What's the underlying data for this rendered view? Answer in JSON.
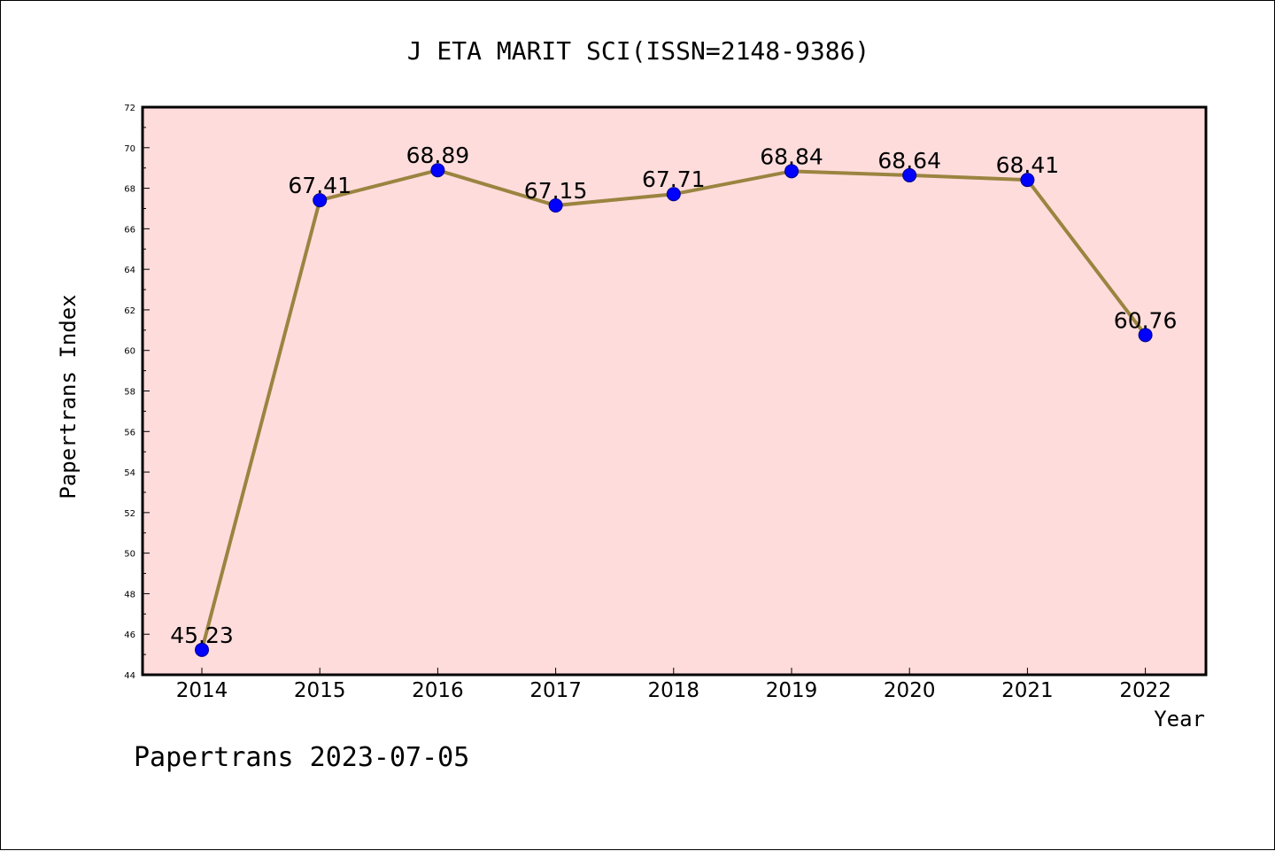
{
  "chart_data": {
    "type": "line",
    "title": "J ETA MARIT SCI(ISSN=2148-9386)",
    "xlabel": "Year",
    "ylabel": "Papertrans Index",
    "categories": [
      "2014",
      "2015",
      "2016",
      "2017",
      "2018",
      "2019",
      "2020",
      "2021",
      "2022"
    ],
    "values": [
      45.23,
      67.41,
      68.89,
      67.15,
      67.71,
      68.84,
      68.64,
      68.41,
      60.76
    ],
    "data_labels": [
      "45.23",
      "67.41",
      "68.89",
      "67.15",
      "67.71",
      "68.84",
      "68.64",
      "68.41",
      "60.76"
    ],
    "ylim": [
      44,
      72
    ],
    "yticks": [
      "44",
      "46",
      "48",
      "50",
      "52",
      "54",
      "56",
      "58",
      "60",
      "62",
      "64",
      "66",
      "68",
      "70",
      "72"
    ],
    "grid": false,
    "legend": "none"
  },
  "footer": "Papertrans 2023-07-05",
  "colors": {
    "plot_background": "#ffdcdc",
    "line": "#9a8440",
    "marker": "#0000ff",
    "marker_edge": "#00008b"
  }
}
